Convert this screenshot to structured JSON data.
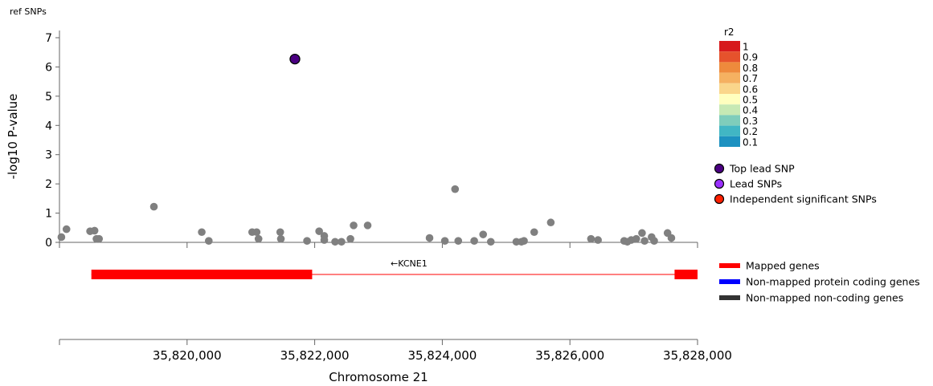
{
  "page_title": "ref SNPs",
  "chart_data": {
    "type": "scatter",
    "xlabel": "Chromosome 21",
    "ylabel": "-log10 P-value",
    "xlim": [
      35818000,
      35828000
    ],
    "ylim": [
      0,
      7.3
    ],
    "x_ticks": [
      35820000,
      35822000,
      35824000,
      35826000,
      35828000
    ],
    "x_tick_labels": [
      "35,820,000",
      "35,822,000",
      "35,824,000",
      "35,826,000",
      "35,828,000"
    ],
    "y_ticks": [
      0,
      1,
      2,
      3,
      4,
      5,
      6,
      7
    ],
    "y_tick_labels": [
      "0",
      "1",
      "2",
      "3",
      "4",
      "5",
      "6",
      "7"
    ],
    "grid": false,
    "series": [
      {
        "name": "SNPs",
        "color": "#808080",
        "points": [
          [
            35818030,
            0.18
          ],
          [
            35818110,
            0.45
          ],
          [
            35818480,
            0.38
          ],
          [
            35818550,
            0.4
          ],
          [
            35818580,
            0.12
          ],
          [
            35818620,
            0.12
          ],
          [
            35819480,
            1.22
          ],
          [
            35820230,
            0.35
          ],
          [
            35820340,
            0.05
          ],
          [
            35821020,
            0.35
          ],
          [
            35821090,
            0.35
          ],
          [
            35821120,
            0.12
          ],
          [
            35821460,
            0.35
          ],
          [
            35821470,
            0.12
          ],
          [
            35821880,
            0.05
          ],
          [
            35822070,
            0.38
          ],
          [
            35822150,
            0.22
          ],
          [
            35822150,
            0.08
          ],
          [
            35822320,
            0.02
          ],
          [
            35822420,
            0.02
          ],
          [
            35822560,
            0.12
          ],
          [
            35822610,
            0.58
          ],
          [
            35822830,
            0.58
          ],
          [
            35823800,
            0.15
          ],
          [
            35824040,
            0.05
          ],
          [
            35824200,
            1.82
          ],
          [
            35824250,
            0.05
          ],
          [
            35824500,
            0.05
          ],
          [
            35824640,
            0.27
          ],
          [
            35824760,
            0.02
          ],
          [
            35825160,
            0.02
          ],
          [
            35825240,
            0.02
          ],
          [
            35825280,
            0.05
          ],
          [
            35825440,
            0.35
          ],
          [
            35825700,
            0.68
          ],
          [
            35826330,
            0.12
          ],
          [
            35826440,
            0.08
          ],
          [
            35826850,
            0.05
          ],
          [
            35826900,
            0.02
          ],
          [
            35826960,
            0.08
          ],
          [
            35827040,
            0.12
          ],
          [
            35827130,
            0.32
          ],
          [
            35827170,
            0.05
          ],
          [
            35827280,
            0.18
          ],
          [
            35827320,
            0.05
          ],
          [
            35827530,
            0.32
          ],
          [
            35827590,
            0.15
          ]
        ]
      },
      {
        "name": "Top lead SNP",
        "color": "#4B0082",
        "points": [
          [
            35821690,
            6.27
          ]
        ]
      }
    ],
    "legend": {
      "title": "r2",
      "placement": "right",
      "scale": [
        {
          "label": "1",
          "color": "#D7191C"
        },
        {
          "label": "0.9",
          "color": "#E6522C"
        },
        {
          "label": "0.8",
          "color": "#EE8A3C"
        },
        {
          "label": "0.7",
          "color": "#F5B161"
        },
        {
          "label": "0.6",
          "color": "#FAD68B"
        },
        {
          "label": "0.5",
          "color": "#FFFFBF"
        },
        {
          "label": "0.4",
          "color": "#C7E9B4"
        },
        {
          "label": "0.3",
          "color": "#7FCDBB"
        },
        {
          "label": "0.2",
          "color": "#41B6C4"
        },
        {
          "label": "0.1",
          "color": "#1D91C0"
        }
      ],
      "markers": [
        {
          "label": "Top lead SNP",
          "color": "#4B0082"
        },
        {
          "label": "Lead SNPs",
          "color": "#9B30FF"
        },
        {
          "label": "Independent significant SNPs",
          "color": "#FF2000"
        }
      ]
    },
    "genes": [
      {
        "label": "←KCNE1",
        "color": "#FF0000",
        "start": 35818500,
        "end": 35828000,
        "exons": [
          [
            35818500,
            35821960
          ],
          [
            35827640,
            35828000
          ]
        ]
      }
    ],
    "gene_legend": [
      {
        "label": "Mapped genes",
        "color": "#FF0000"
      },
      {
        "label": "Non-mapped protein coding genes",
        "color": "#0000FF"
      },
      {
        "label": "Non-mapped non-coding genes",
        "color": "#333333"
      }
    ]
  }
}
